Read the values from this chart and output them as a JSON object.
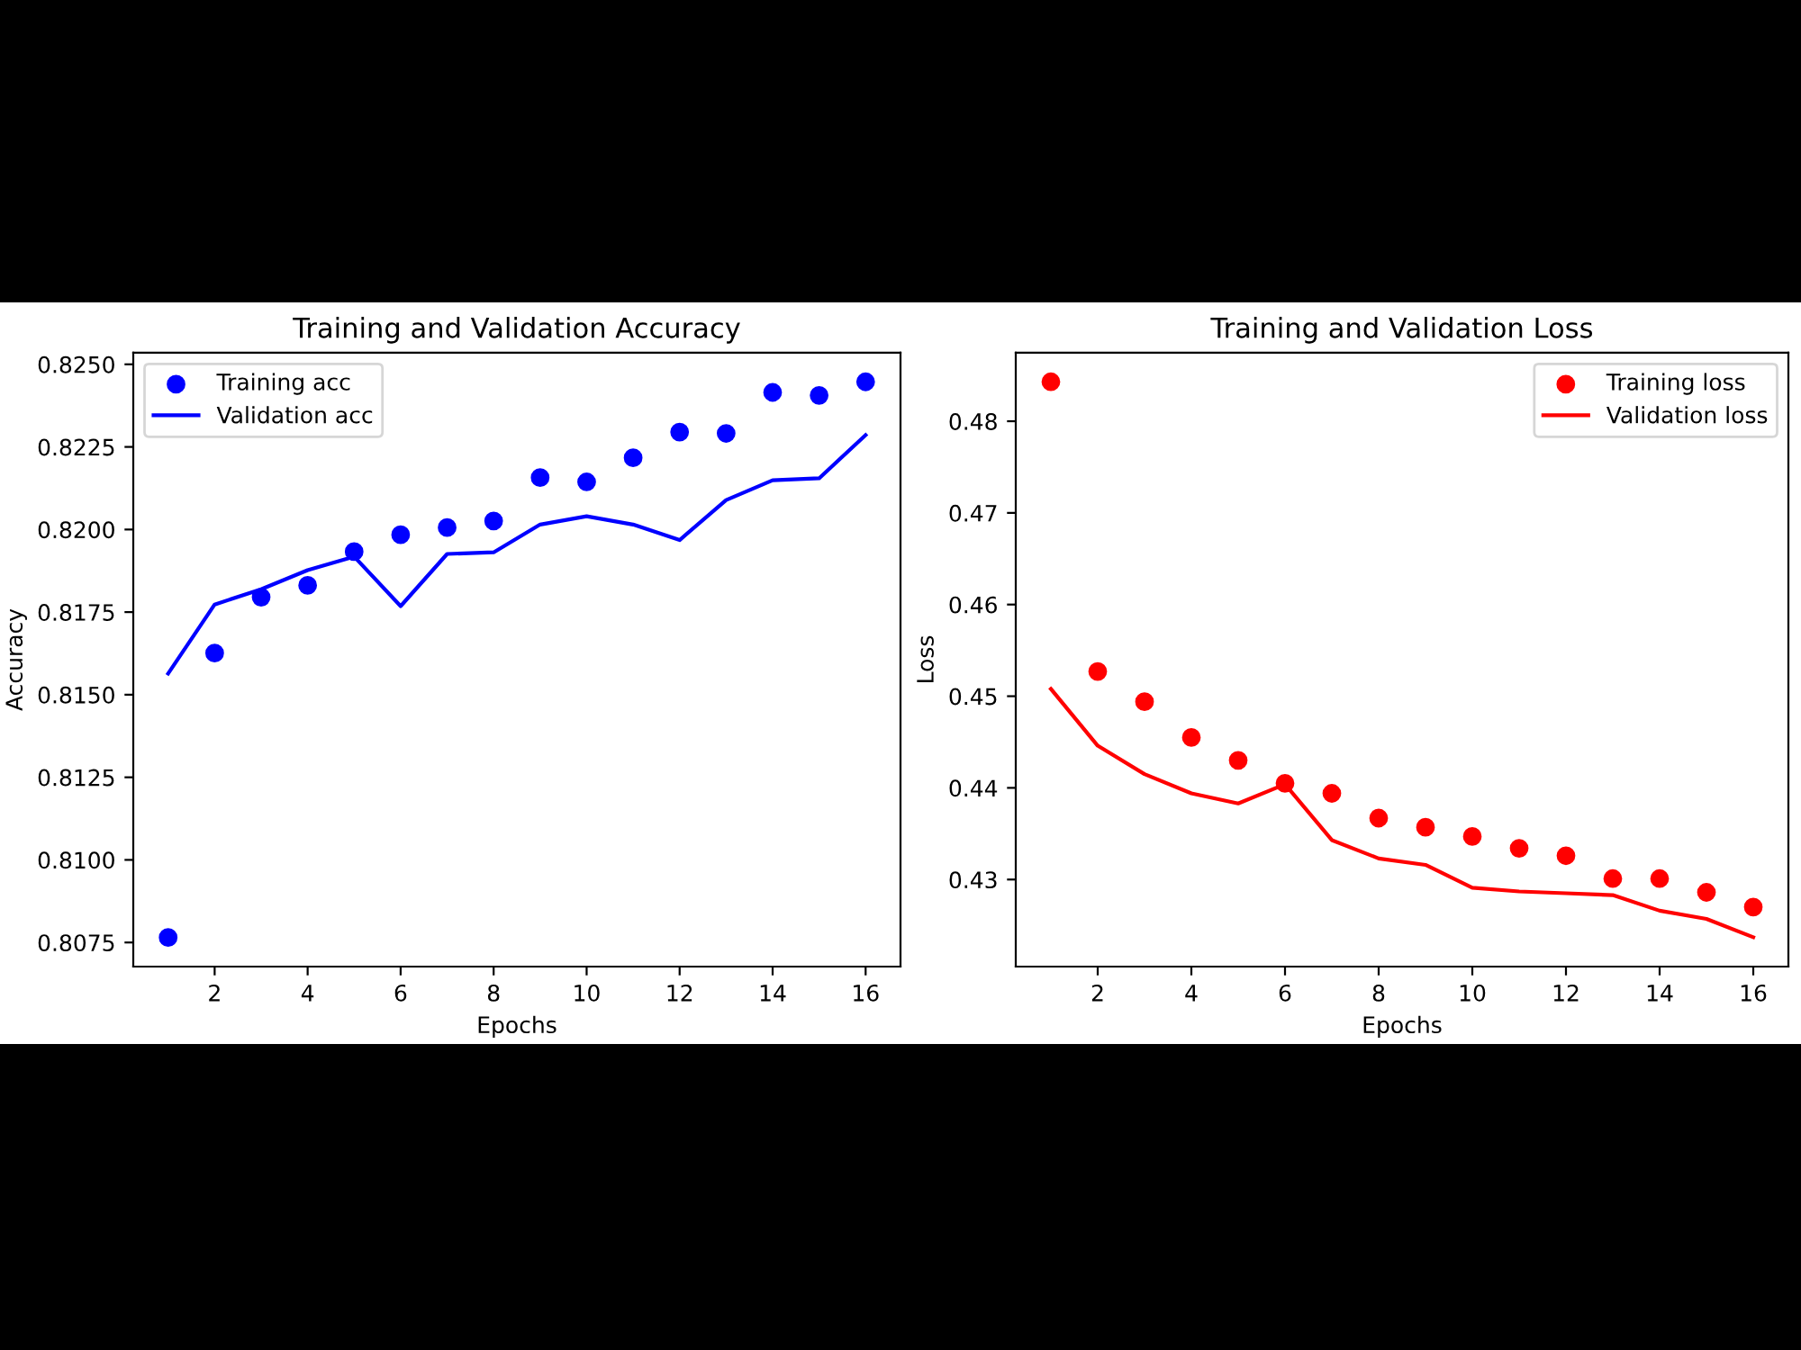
{
  "chart_data": [
    {
      "type": "line",
      "title": "Training and Validation Accuracy",
      "xlabel": "Epochs",
      "ylabel": "Accuracy",
      "x": [
        1,
        2,
        3,
        4,
        5,
        6,
        7,
        8,
        9,
        10,
        11,
        12,
        13,
        14,
        15,
        16
      ],
      "series": [
        {
          "name": "Training acc",
          "type": "scatter",
          "marker": "circle",
          "color": "#0000ff",
          "values": [
            0.80765,
            0.81626,
            0.81795,
            0.81831,
            0.81933,
            0.81984,
            0.82006,
            0.82026,
            0.82157,
            0.82144,
            0.82217,
            0.82295,
            0.82291,
            0.82415,
            0.82406,
            0.82447
          ]
        },
        {
          "name": "Validation acc",
          "line_style": "solid",
          "color": "#0000ff",
          "values": [
            0.81564,
            0.81773,
            0.81819,
            0.81877,
            0.81918,
            0.81768,
            0.81926,
            0.81931,
            0.82015,
            0.8204,
            0.82015,
            0.81968,
            0.82089,
            0.82149,
            0.82155,
            0.82286
          ]
        }
      ],
      "xlim": [
        0.25,
        16.75
      ],
      "xticks": [
        2,
        4,
        6,
        8,
        10,
        12,
        14,
        16
      ],
      "ylim": [
        0.80677,
        0.82535
      ],
      "yticks": [
        {
          "value": 0.8075,
          "label": "0.8075"
        },
        {
          "value": 0.81,
          "label": "0.8100"
        },
        {
          "value": 0.8125,
          "label": "0.8125"
        },
        {
          "value": 0.815,
          "label": "0.8150"
        },
        {
          "value": 0.8175,
          "label": "0.8175"
        },
        {
          "value": 0.82,
          "label": "0.8200"
        },
        {
          "value": 0.8225,
          "label": "0.8225"
        },
        {
          "value": 0.825,
          "label": "0.8250"
        }
      ],
      "grid": false,
      "legend": "top left"
    },
    {
      "type": "line",
      "title": "Training and Validation Loss",
      "xlabel": "Epochs",
      "ylabel": "Loss",
      "x": [
        1,
        2,
        3,
        4,
        5,
        6,
        7,
        8,
        9,
        10,
        11,
        12,
        13,
        14,
        15,
        16
      ],
      "series": [
        {
          "name": "Training loss",
          "type": "scatter",
          "marker": "circle",
          "color": "#ff0000",
          "values": [
            0.4843,
            0.4527,
            0.4494,
            0.4455,
            0.443,
            0.4405,
            0.4394,
            0.4367,
            0.4357,
            0.4347,
            0.4334,
            0.4326,
            0.4301,
            0.4301,
            0.4286,
            0.427
          ]
        },
        {
          "name": "Validation loss",
          "line_style": "solid",
          "color": "#ff0000",
          "values": [
            0.4508,
            0.4446,
            0.4415,
            0.4394,
            0.4383,
            0.4404,
            0.4343,
            0.4323,
            0.4316,
            0.4291,
            0.4287,
            0.4285,
            0.4283,
            0.4266,
            0.4257,
            0.4237
          ]
        }
      ],
      "xlim": [
        0.25,
        16.75
      ],
      "xticks": [
        2,
        4,
        6,
        8,
        10,
        12,
        14,
        16
      ],
      "ylim": [
        0.4205,
        0.48747
      ],
      "yticks": [
        0.43,
        0.44,
        0.45,
        0.46,
        0.47,
        0.48
      ],
      "grid": false,
      "legend": "top right"
    }
  ]
}
